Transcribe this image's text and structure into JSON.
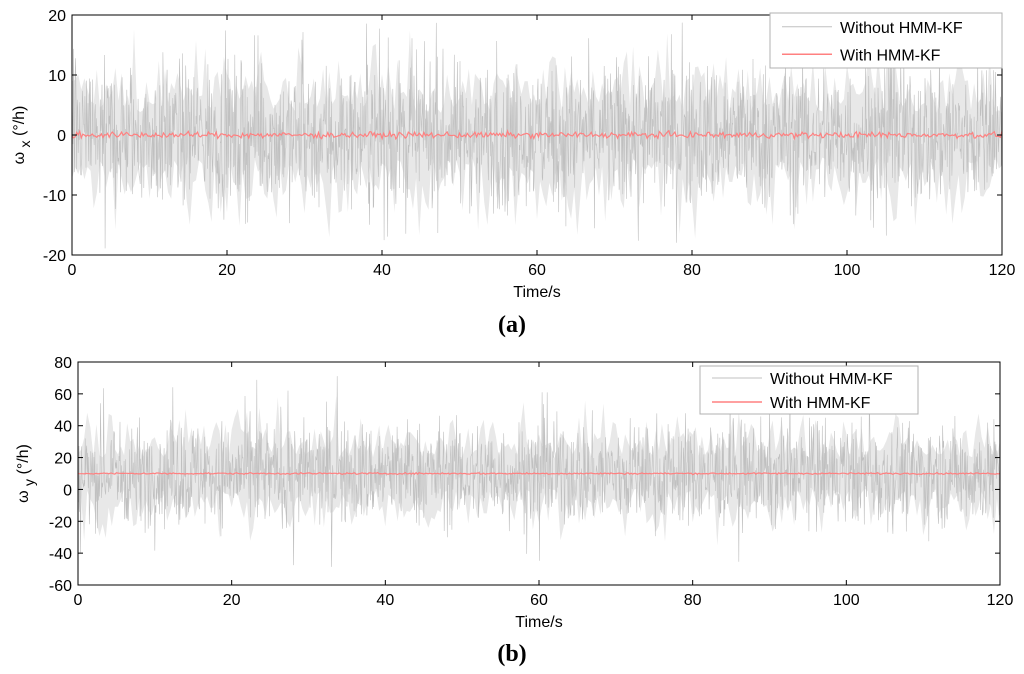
{
  "colors": {
    "noise": "#c0c0c0",
    "noise_fill": "#e8e8e8",
    "filtered": "#ff8080",
    "axis": "#000000",
    "legend_border": "#b0b0b0"
  },
  "panels": [
    {
      "caption": "(a)",
      "ylabel_main": "ω",
      "ylabel_sub": "x",
      "ylabel_unit": "(°/h)"
    },
    {
      "caption": "(b)",
      "ylabel_main": "ω",
      "ylabel_sub": "y",
      "ylabel_unit": "(°/h)"
    }
  ],
  "chart_data": [
    {
      "type": "line",
      "xlabel": "Time/s",
      "ylabel": "ω x (°/h)",
      "xlim": [
        0,
        120
      ],
      "ylim": [
        -20,
        20
      ],
      "xticks": [
        0,
        20,
        40,
        60,
        80,
        100,
        120
      ],
      "yticks": [
        -20,
        -10,
        0,
        10,
        20
      ],
      "legend_position": "top-right",
      "grid": false,
      "series": [
        {
          "name": "Without HMM-KF",
          "mean": 0,
          "typical_range": [
            -13,
            13
          ],
          "extremes": [
            -19,
            19
          ]
        },
        {
          "name": "With HMM-KF",
          "mean": 0,
          "typical_range": [
            -0.5,
            0.5
          ]
        }
      ]
    },
    {
      "type": "line",
      "xlabel": "Time/s",
      "ylabel": "ω y (°/h)",
      "xlim": [
        0,
        120
      ],
      "ylim": [
        -60,
        80
      ],
      "xticks": [
        0,
        20,
        40,
        60,
        80,
        100,
        120
      ],
      "yticks": [
        -60,
        -40,
        -20,
        0,
        20,
        40,
        60,
        80
      ],
      "legend_position": "top-right",
      "grid": false,
      "series": [
        {
          "name": "Without HMM-KF",
          "mean": 10,
          "typical_range": [
            -25,
            45
          ],
          "extremes": [
            -55,
            72
          ]
        },
        {
          "name": "With HMM-KF",
          "mean": 10,
          "typical_range": [
            9.5,
            10.5
          ]
        }
      ]
    }
  ]
}
